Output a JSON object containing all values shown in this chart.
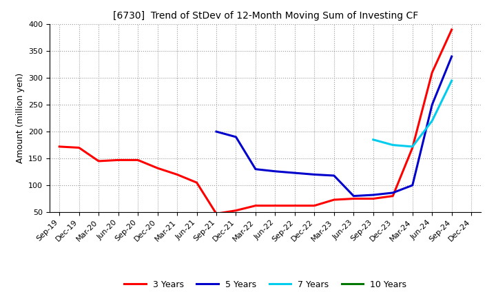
{
  "title": "[6730]  Trend of StDev of 12-Month Moving Sum of Investing CF",
  "ylabel": "Amount (million yen)",
  "background_color": "#ffffff",
  "grid_color": "#aaaaaa",
  "ylim": [
    50,
    400
  ],
  "yticks": [
    50,
    100,
    150,
    200,
    250,
    300,
    350,
    400
  ],
  "x_labels": [
    "Sep-19",
    "Dec-19",
    "Mar-20",
    "Jun-20",
    "Sep-20",
    "Dec-20",
    "Mar-21",
    "Jun-21",
    "Sep-21",
    "Dec-21",
    "Mar-22",
    "Jun-22",
    "Sep-22",
    "Dec-22",
    "Mar-23",
    "Jun-23",
    "Sep-23",
    "Dec-23",
    "Mar-24",
    "Jun-24",
    "Sep-24",
    "Dec-24"
  ],
  "series": [
    {
      "name": "3 Years",
      "color": "#ff0000",
      "data_x": [
        0,
        1,
        2,
        3,
        4,
        5,
        6,
        7,
        8,
        9,
        10,
        11,
        12,
        13,
        14,
        15,
        16,
        17,
        18,
        19,
        20
      ],
      "data_y": [
        172,
        170,
        145,
        147,
        147,
        132,
        120,
        105,
        47,
        53,
        62,
        62,
        62,
        62,
        73,
        75,
        75,
        80,
        170,
        310,
        390
      ]
    },
    {
      "name": "5 Years",
      "color": "#0000cc",
      "data_x": [
        8,
        9,
        10,
        11,
        12,
        13,
        14,
        15,
        16,
        17,
        18,
        19,
        20
      ],
      "data_y": [
        200,
        190,
        130,
        126,
        123,
        120,
        118,
        80,
        82,
        86,
        100,
        250,
        340
      ]
    },
    {
      "name": "7 Years",
      "color": "#00ccee",
      "data_x": [
        16,
        17,
        18,
        19,
        20
      ],
      "data_y": [
        185,
        175,
        172,
        220,
        295
      ]
    },
    {
      "name": "10 Years",
      "color": "#007700",
      "data_x": [],
      "data_y": []
    }
  ]
}
